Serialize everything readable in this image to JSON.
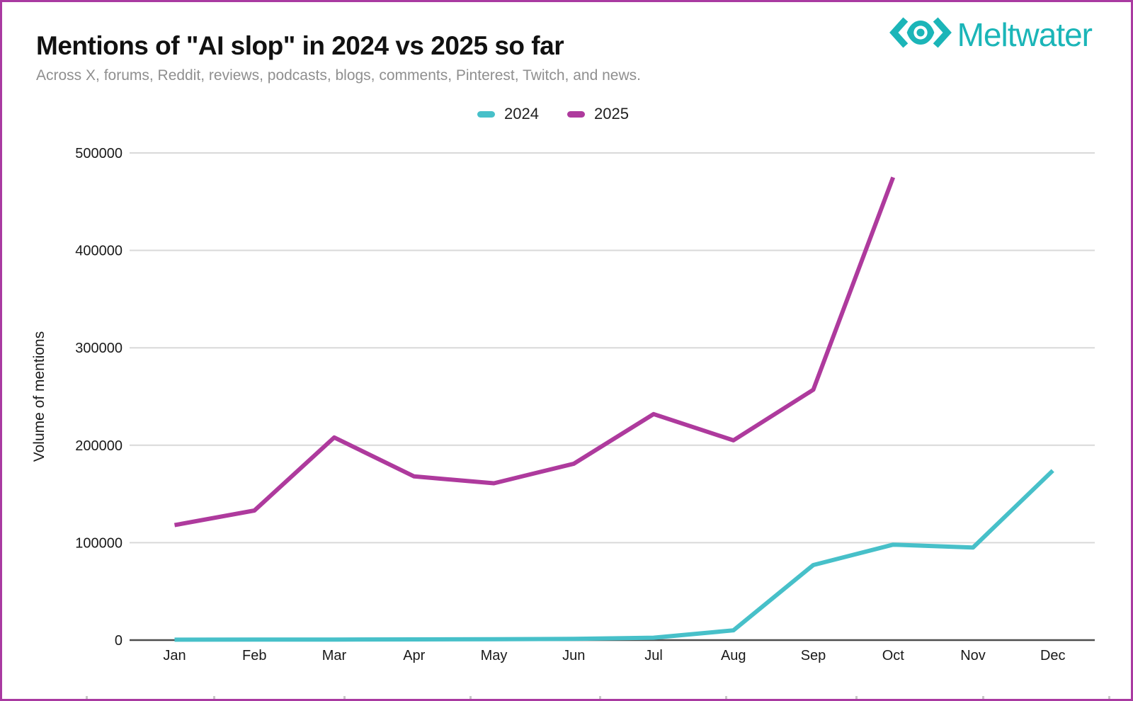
{
  "page": {
    "border_color": "#A93AA1",
    "background": "#ffffff"
  },
  "header": {
    "title": "Mentions of \"AI slop\" in 2024 vs 2025 so far",
    "subtitle": "Across X, forums, Reddit, reviews, podcasts, blogs, comments, Pinterest, Twitch, and news.",
    "logo": {
      "text": "Meltwater",
      "color": "#1BB5B8",
      "icon": "meltwater-eye-icon"
    }
  },
  "legend": [
    {
      "label": "2024",
      "color": "#47C0C9"
    },
    {
      "label": "2025",
      "color": "#AE3A9D"
    }
  ],
  "chart_data": {
    "type": "line",
    "title": "Mentions of \"AI slop\" in 2024 vs 2025 so far",
    "categories": [
      "Jan",
      "Feb",
      "Mar",
      "Apr",
      "May",
      "Jun",
      "Jul",
      "Aug",
      "Sep",
      "Oct",
      "Nov",
      "Dec"
    ],
    "series": [
      {
        "name": "2024",
        "color": "#47C0C9",
        "values": [
          400,
          500,
          600,
          700,
          900,
          1200,
          2500,
          10000,
          77000,
          98000,
          95000,
          174000
        ]
      },
      {
        "name": "2025",
        "color": "#AE3A9D",
        "values": [
          118000,
          133000,
          208000,
          168000,
          161000,
          181000,
          232000,
          205000,
          257000,
          475000
        ]
      }
    ],
    "xlabel": "",
    "ylabel": "Volume of mentions",
    "ylim": [
      0,
      500000
    ],
    "yticks": [
      0,
      100000,
      200000,
      300000,
      400000,
      500000
    ],
    "grid": true,
    "legend_position": "top-center",
    "colors": {
      "gridline": "#D9D9D9",
      "axis_line": "#4D4D4D",
      "tick_text": "#1A1A1A"
    }
  },
  "artifact_ticks_x": [
    121,
    301,
    485,
    663,
    846,
    1024,
    1208,
    1387,
    1565
  ]
}
